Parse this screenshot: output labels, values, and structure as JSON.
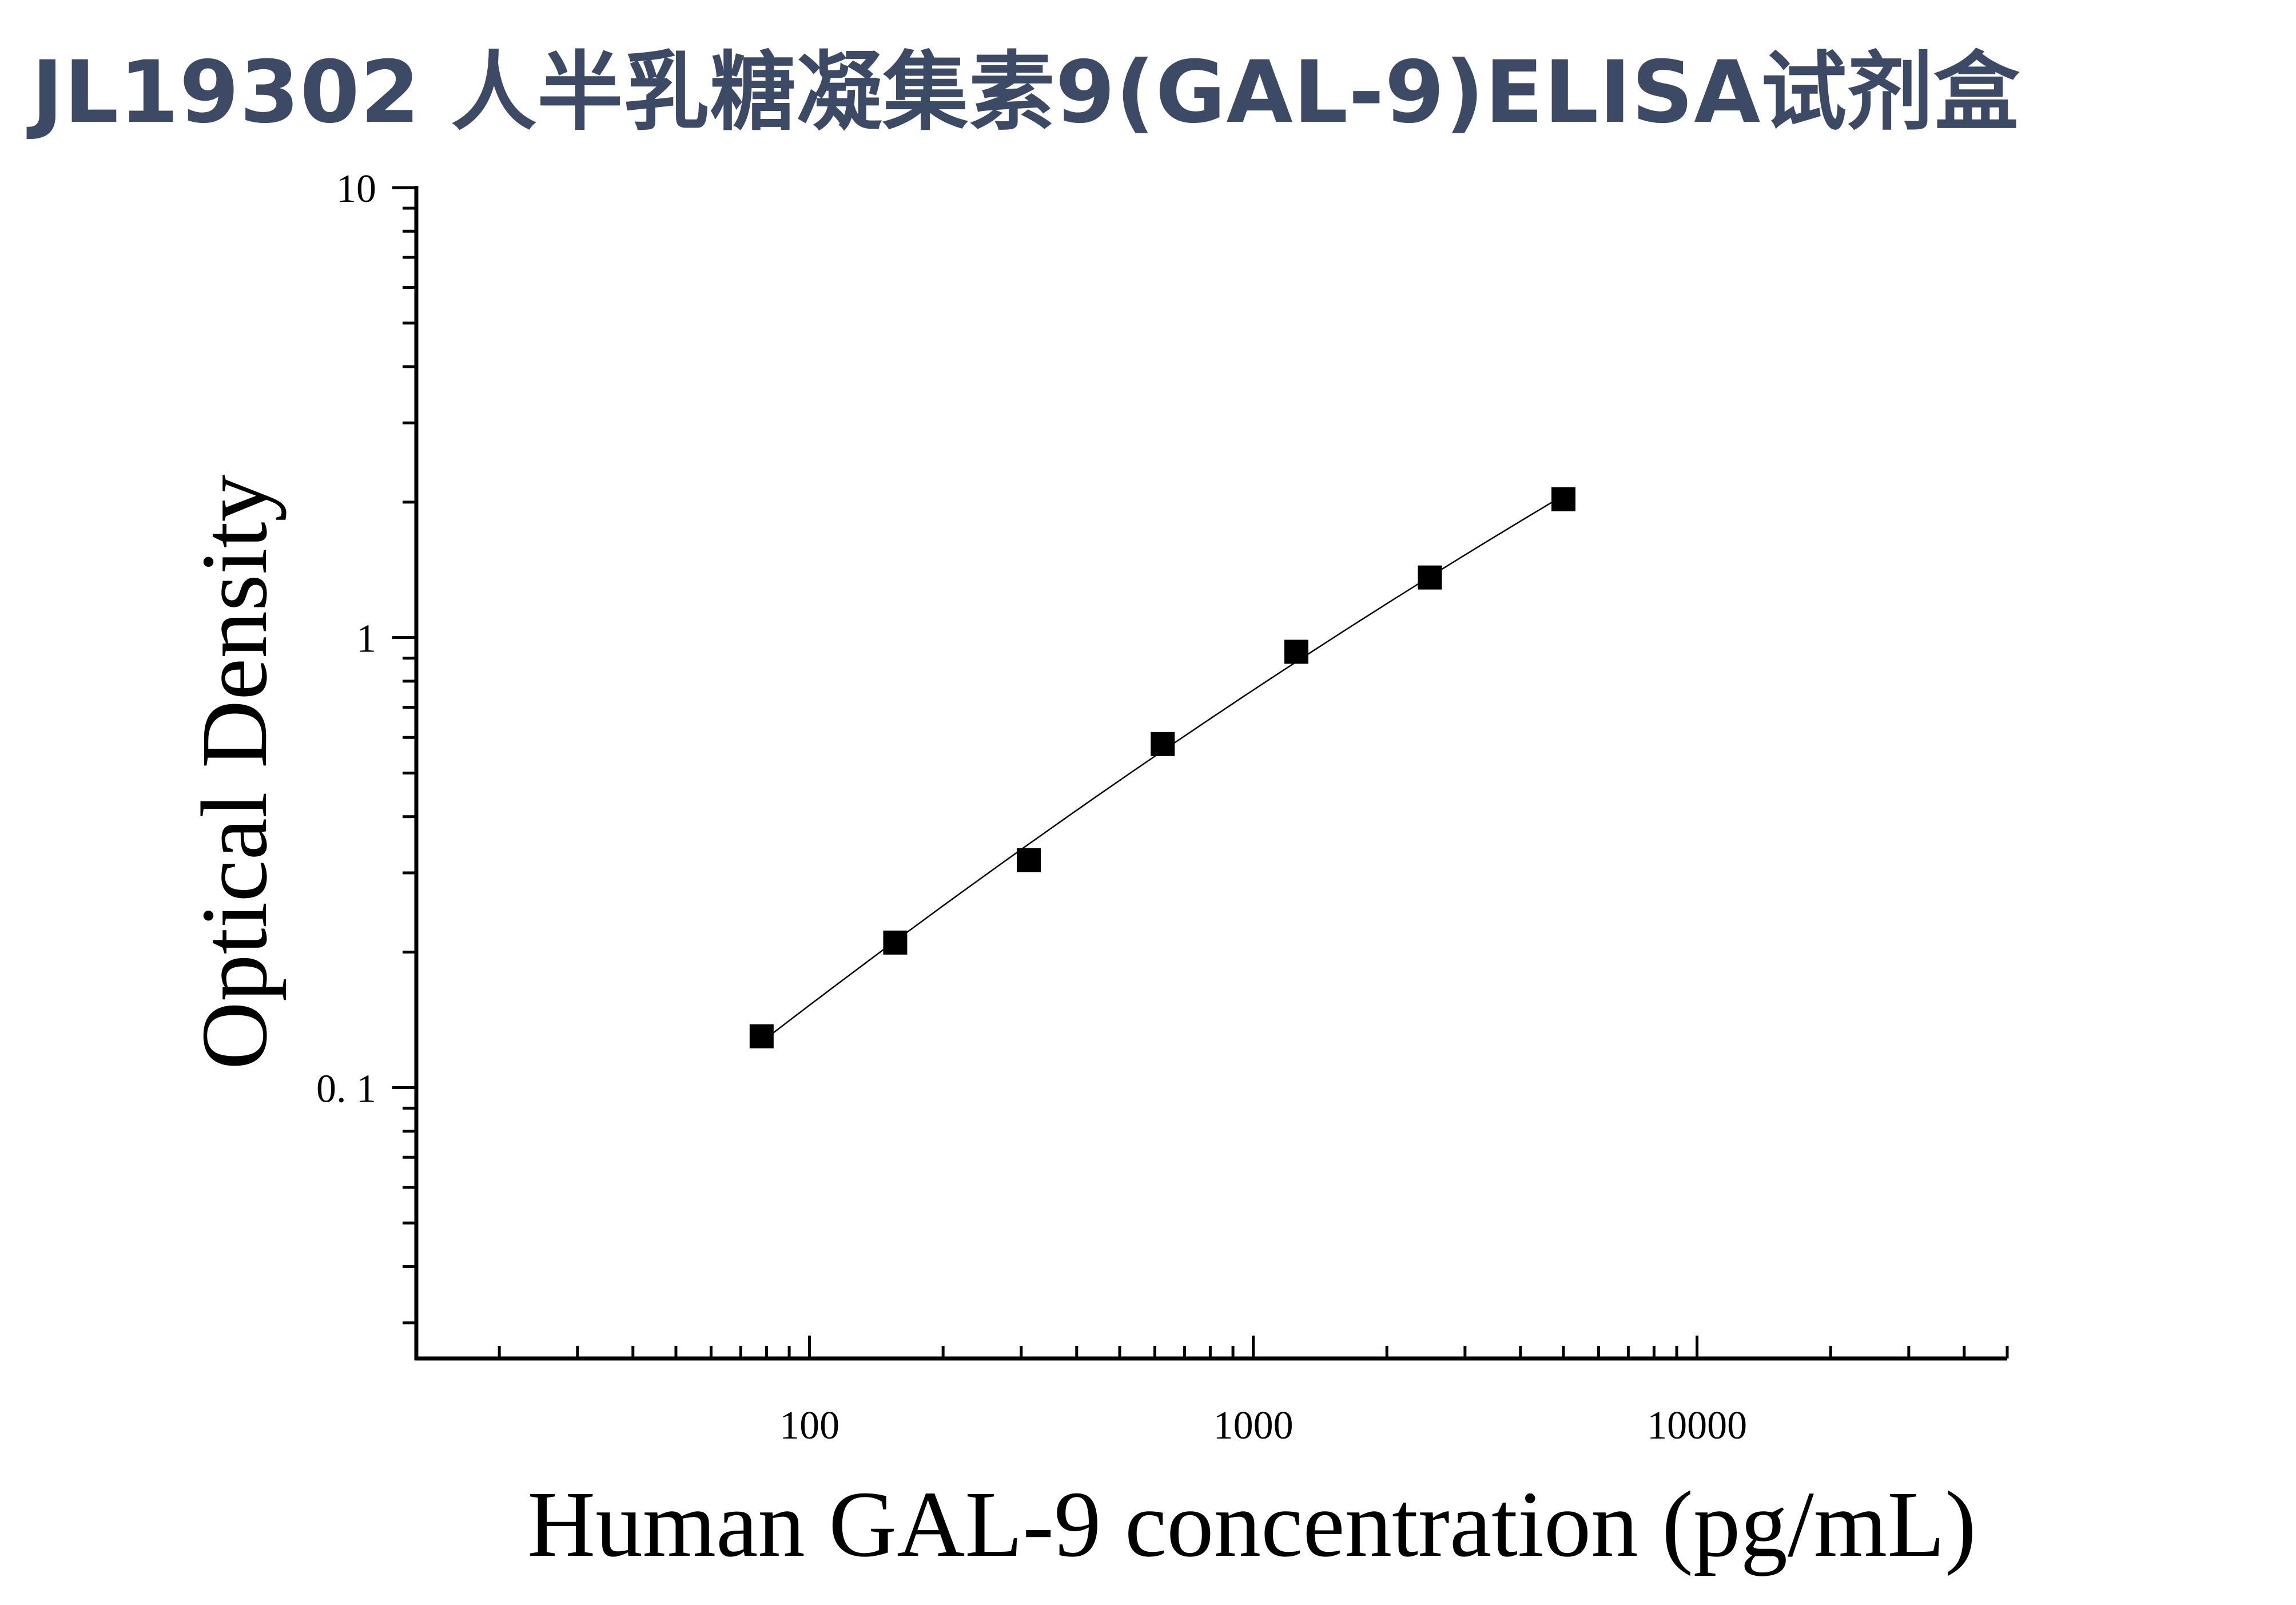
{
  "title": "JL19302 人半乳糖凝集素9(GAL-9)ELISA试剂盒",
  "chart_data": {
    "type": "scatter",
    "xlabel": "Human GAL-9 concentration (pg/mL)",
    "ylabel": "Optical Density",
    "xscale": "log",
    "yscale": "log",
    "xlim": [
      13,
      50000
    ],
    "ylim": [
      0.025,
      10
    ],
    "xticks": [
      {
        "value": 100,
        "label": "100"
      },
      {
        "value": 1000,
        "label": "1000"
      },
      {
        "value": 10000,
        "label": "10000"
      }
    ],
    "yticks": [
      {
        "value": 0.1,
        "label": "0. 1"
      },
      {
        "value": 1,
        "label": "1"
      },
      {
        "value": 10,
        "label": "10"
      }
    ],
    "series": [
      {
        "x": [
          78,
          156,
          312,
          625,
          1250,
          2500,
          5000
        ],
        "y": [
          0.13,
          0.21,
          0.32,
          0.58,
          0.93,
          1.36,
          2.03
        ]
      }
    ],
    "fit_curve": true,
    "grid": false,
    "colors": {
      "marker": "#000000",
      "line": "#000000",
      "title": "#3d4a66"
    }
  }
}
